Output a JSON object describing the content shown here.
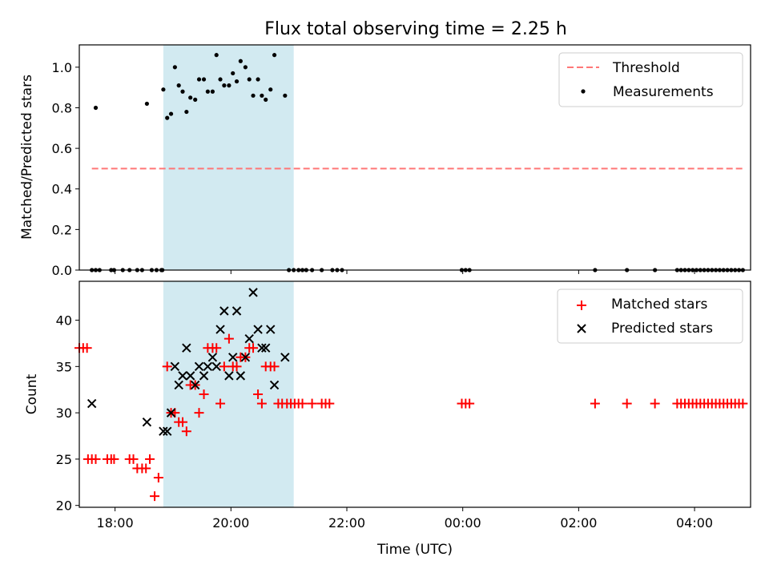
{
  "title": "Flux total observing time = 2.25 h",
  "colors": {
    "threshold": "#ff7777",
    "measurement": "#000000",
    "matched": "#ff0000",
    "predicted": "#000000",
    "span": "#add8e6"
  },
  "chart_data": [
    {
      "type": "scatter",
      "panel": "top",
      "ylabel": "Matched/Predicted stars",
      "xlabel": "",
      "ylim": [
        0,
        1.11
      ],
      "xlim": [
        "17:23",
        "04:58"
      ],
      "xticks": [
        "18:00",
        "20:00",
        "22:00",
        "00:00",
        "02:00",
        "04:00"
      ],
      "yticks": [
        "0.0",
        "0.2",
        "0.4",
        "0.6",
        "0.8",
        "1.0"
      ],
      "legend": "top-right",
      "highlight_span": [
        "18:50",
        "21:05"
      ],
      "threshold": {
        "name": "Threshold",
        "value": 0.5,
        "x": [
          "17:36",
          "04:50"
        ]
      },
      "series": [
        {
          "name": "Measurements",
          "points": [
            [
              "17:36",
              0
            ],
            [
              "17:40",
              0
            ],
            [
              "17:44",
              0
            ],
            [
              "17:56",
              0
            ],
            [
              "17:59",
              0
            ],
            [
              "18:08",
              0
            ],
            [
              "18:15",
              0
            ],
            [
              "18:23",
              0
            ],
            [
              "18:28",
              0
            ],
            [
              "18:38",
              0
            ],
            [
              "18:43",
              0
            ],
            [
              "18:48",
              0
            ],
            [
              "18:49",
              0
            ],
            [
              "17:40",
              0.8
            ],
            [
              "18:33",
              0.82
            ],
            [
              "18:50",
              0.89
            ],
            [
              "18:54",
              0.75
            ],
            [
              "18:58",
              0.77
            ],
            [
              "19:02",
              1.0
            ],
            [
              "19:06",
              0.91
            ],
            [
              "19:10",
              0.88
            ],
            [
              "19:14",
              0.78
            ],
            [
              "19:18",
              0.85
            ],
            [
              "19:23",
              0.84
            ],
            [
              "19:27",
              0.94
            ],
            [
              "19:32",
              0.94
            ],
            [
              "19:36",
              0.88
            ],
            [
              "19:41",
              0.88
            ],
            [
              "19:45",
              1.06
            ],
            [
              "19:49",
              0.94
            ],
            [
              "19:53",
              0.91
            ],
            [
              "19:58",
              0.91
            ],
            [
              "20:02",
              0.97
            ],
            [
              "20:06",
              0.93
            ],
            [
              "20:10",
              1.03
            ],
            [
              "20:15",
              1.0
            ],
            [
              "20:19",
              0.94
            ],
            [
              "20:23",
              0.86
            ],
            [
              "20:28",
              0.94
            ],
            [
              "20:32",
              0.86
            ],
            [
              "20:36",
              0.84
            ],
            [
              "20:41",
              0.89
            ],
            [
              "20:45",
              1.06
            ],
            [
              "20:56",
              0.86
            ],
            [
              "21:00",
              0
            ],
            [
              "21:05",
              0
            ],
            [
              "21:10",
              0
            ],
            [
              "21:14",
              0
            ],
            [
              "21:18",
              0
            ],
            [
              "21:24",
              0
            ],
            [
              "21:34",
              0
            ],
            [
              "21:45",
              0
            ],
            [
              "21:50",
              0
            ],
            [
              "21:55",
              0
            ],
            [
              "23:59",
              0
            ],
            [
              "00:03",
              0
            ],
            [
              "00:07",
              0
            ],
            [
              "02:17",
              0
            ],
            [
              "02:50",
              0
            ],
            [
              "03:19",
              0
            ],
            [
              "03:42",
              0
            ],
            [
              "03:46",
              0
            ],
            [
              "03:50",
              0
            ],
            [
              "03:54",
              0
            ],
            [
              "03:58",
              0
            ],
            [
              "04:02",
              0
            ],
            [
              "04:06",
              0
            ],
            [
              "04:10",
              0
            ],
            [
              "04:14",
              0
            ],
            [
              "04:18",
              0
            ],
            [
              "04:22",
              0
            ],
            [
              "04:26",
              0
            ],
            [
              "04:30",
              0
            ],
            [
              "04:34",
              0
            ],
            [
              "04:38",
              0
            ],
            [
              "04:42",
              0
            ],
            [
              "04:46",
              0
            ],
            [
              "04:50",
              0
            ]
          ]
        }
      ]
    },
    {
      "type": "scatter",
      "panel": "bottom",
      "ylabel": "Count",
      "xlabel": "Time (UTC)",
      "ylim": [
        19.8,
        44.2
      ],
      "xlim": [
        "17:23",
        "04:58"
      ],
      "xticks": [
        "18:00",
        "20:00",
        "22:00",
        "00:00",
        "02:00",
        "04:00"
      ],
      "yticks": [
        "20",
        "25",
        "30",
        "35",
        "40"
      ],
      "legend": "top-right",
      "highlight_span": [
        "18:50",
        "21:05"
      ],
      "series": [
        {
          "name": "Matched stars",
          "marker": "plus",
          "points": [
            [
              "17:23",
              37
            ],
            [
              "17:27",
              37
            ],
            [
              "17:31",
              37
            ],
            [
              "17:32",
              25
            ],
            [
              "17:36",
              25
            ],
            [
              "17:40",
              25
            ],
            [
              "17:52",
              25
            ],
            [
              "17:56",
              25
            ],
            [
              "17:59",
              25
            ],
            [
              "18:15",
              25
            ],
            [
              "18:19",
              25
            ],
            [
              "18:23",
              24
            ],
            [
              "18:28",
              24
            ],
            [
              "18:32",
              24
            ],
            [
              "18:36",
              25
            ],
            [
              "18:41",
              21
            ],
            [
              "18:45",
              23
            ],
            [
              "18:54",
              35
            ],
            [
              "18:58",
              30
            ],
            [
              "19:02",
              30
            ],
            [
              "19:06",
              29
            ],
            [
              "19:10",
              29
            ],
            [
              "19:14",
              28
            ],
            [
              "19:18",
              33
            ],
            [
              "19:23",
              33
            ],
            [
              "19:27",
              30
            ],
            [
              "19:32",
              32
            ],
            [
              "19:36",
              37
            ],
            [
              "19:41",
              37
            ],
            [
              "19:45",
              37
            ],
            [
              "19:49",
              31
            ],
            [
              "19:53",
              35
            ],
            [
              "19:58",
              38
            ],
            [
              "20:02",
              35
            ],
            [
              "20:06",
              35
            ],
            [
              "20:10",
              36
            ],
            [
              "20:15",
              36
            ],
            [
              "20:19",
              37
            ],
            [
              "20:23",
              37
            ],
            [
              "20:28",
              32
            ],
            [
              "20:32",
              31
            ],
            [
              "20:36",
              35
            ],
            [
              "20:41",
              35
            ],
            [
              "20:45",
              35
            ],
            [
              "20:49",
              31
            ],
            [
              "20:53",
              31
            ],
            [
              "20:58",
              31
            ],
            [
              "21:02",
              31
            ],
            [
              "21:06",
              31
            ],
            [
              "21:10",
              31
            ],
            [
              "21:14",
              31
            ],
            [
              "21:24",
              31
            ],
            [
              "21:34",
              31
            ],
            [
              "21:38",
              31
            ],
            [
              "21:42",
              31
            ],
            [
              "23:59",
              31
            ],
            [
              "00:03",
              31
            ],
            [
              "00:07",
              31
            ],
            [
              "02:17",
              31
            ],
            [
              "02:50",
              31
            ],
            [
              "03:19",
              31
            ],
            [
              "03:42",
              31
            ],
            [
              "03:46",
              31
            ],
            [
              "03:50",
              31
            ],
            [
              "03:54",
              31
            ],
            [
              "03:58",
              31
            ],
            [
              "04:02",
              31
            ],
            [
              "04:06",
              31
            ],
            [
              "04:10",
              31
            ],
            [
              "04:14",
              31
            ],
            [
              "04:18",
              31
            ],
            [
              "04:22",
              31
            ],
            [
              "04:26",
              31
            ],
            [
              "04:30",
              31
            ],
            [
              "04:34",
              31
            ],
            [
              "04:38",
              31
            ],
            [
              "04:42",
              31
            ],
            [
              "04:46",
              31
            ],
            [
              "04:50",
              31
            ]
          ]
        },
        {
          "name": "Predicted stars",
          "marker": "x",
          "points": [
            [
              "17:36",
              31
            ],
            [
              "18:33",
              29
            ],
            [
              "18:50",
              28
            ],
            [
              "18:54",
              28
            ],
            [
              "18:58",
              30
            ],
            [
              "19:02",
              35
            ],
            [
              "19:06",
              33
            ],
            [
              "19:10",
              34
            ],
            [
              "19:14",
              37
            ],
            [
              "19:18",
              34
            ],
            [
              "19:23",
              33
            ],
            [
              "19:27",
              35
            ],
            [
              "19:32",
              34
            ],
            [
              "19:36",
              35
            ],
            [
              "19:41",
              36
            ],
            [
              "19:45",
              35
            ],
            [
              "19:49",
              39
            ],
            [
              "19:53",
              41
            ],
            [
              "19:58",
              34
            ],
            [
              "20:02",
              36
            ],
            [
              "20:06",
              41
            ],
            [
              "20:10",
              34
            ],
            [
              "20:15",
              36
            ],
            [
              "20:19",
              38
            ],
            [
              "20:23",
              43
            ],
            [
              "20:28",
              39
            ],
            [
              "20:32",
              37
            ],
            [
              "20:36",
              37
            ],
            [
              "20:41",
              39
            ],
            [
              "20:45",
              33
            ],
            [
              "20:56",
              36
            ]
          ]
        }
      ]
    }
  ]
}
